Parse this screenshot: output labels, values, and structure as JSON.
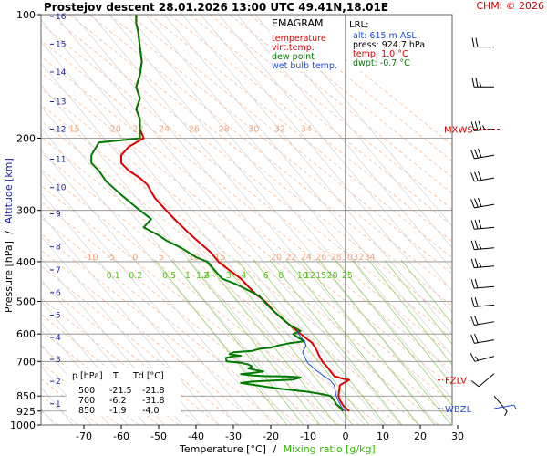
{
  "header": {
    "title": "Prostejov   descent   28.01.2026 13:00 UTC  49.41N,18.01E",
    "copyright": "CHMI © 2026"
  },
  "chart_data": {
    "type": "line",
    "title": "Prostejov   descent   28.01.2026 13:00 UTC  49.41N,18.01E",
    "diagram": "EMAGRAM",
    "xlabel": "Temperature [°C]",
    "xlabel_sep": "/",
    "xlabel2": "Mixing ratio [g/kg]",
    "ylabel": "Pressure [hPa]",
    "ylabel_sep": "/",
    "ylabel2": "Altitude [km]",
    "xlim": [
      -80,
      30
    ],
    "ylim": [
      1000,
      100
    ],
    "yscale": "log",
    "x_ticks": [
      -70,
      -60,
      -50,
      -40,
      -30,
      -20,
      -10,
      0,
      10,
      20,
      30
    ],
    "y_ticks": [
      100,
      200,
      300,
      400,
      500,
      600,
      700,
      850,
      925,
      1000
    ],
    "y_grid": [
      200,
      300,
      400,
      500,
      600,
      700,
      850,
      925
    ],
    "altitude_ticks_km": [
      {
        "km": "1",
        "p": 888
      },
      {
        "km": "2",
        "p": 783
      },
      {
        "km": "3",
        "p": 692
      },
      {
        "km": "4",
        "p": 612
      },
      {
        "km": "5",
        "p": 540
      },
      {
        "km": "6",
        "p": 476
      },
      {
        "km": "7",
        "p": 419
      },
      {
        "km": "8",
        "p": 368
      },
      {
        "km": "9",
        "p": 306
      },
      {
        "km": "10",
        "p": 264
      },
      {
        "km": "11",
        "p": 225
      },
      {
        "km": "12",
        "p": 190
      },
      {
        "km": "13",
        "p": 163
      },
      {
        "km": "14",
        "p": 138
      },
      {
        "km": "15",
        "p": 118
      },
      {
        "km": "16",
        "p": 101
      }
    ],
    "legend": [
      {
        "label": "temperature",
        "color": "#e00000"
      },
      {
        "label": "virt.temp.",
        "color": "#e00000"
      },
      {
        "label": "dew point",
        "color": "#007a00"
      },
      {
        "label": "wet bulb temp.",
        "color": "#1f4fd0"
      }
    ],
    "lrl": {
      "title": "LRL:",
      "alt": "alt: 615 m ASL",
      "press": "press: 924.7 hPa",
      "temp": "temp: 1.0 °C",
      "dwpt": "dwpt: -0.7 °C"
    },
    "levels_table": {
      "header": [
        "p [hPa]",
        "T",
        "Td [°C]"
      ],
      "rows": [
        [
          "500",
          "-21.5",
          "-21.8"
        ],
        [
          "700",
          "-6.2",
          "-31.8"
        ],
        [
          "850",
          "-1.9",
          "-4.0"
        ]
      ]
    },
    "markers": {
      "mxws": {
        "label": "MXWS",
        "p": 190
      },
      "fzlv": {
        "label": "FZLV",
        "p": 777
      },
      "wbzl": {
        "label": "WBZL",
        "p": 912
      }
    },
    "dry_adiabat_labels": {
      "row1": {
        "p": 196,
        "labels": [
          "15",
          "20",
          "22",
          "24",
          "26",
          "28",
          "30",
          "32",
          "34"
        ],
        "t": [
          -74,
          -63,
          -57,
          -50,
          -42,
          -34,
          -26,
          -19,
          -12
        ]
      },
      "row2": {
        "p": 402,
        "labels": [
          "-10",
          "-5",
          "0",
          "5",
          "10",
          "15",
          "20",
          "22",
          "24",
          "26",
          "28",
          "30",
          "32",
          "34"
        ],
        "t": [
          -70,
          -64,
          -57,
          -50,
          -42,
          -35,
          -20,
          -16,
          -12,
          -8,
          -4,
          -1,
          2,
          5
        ]
      }
    },
    "mixing_ratio_labels": {
      "p": 445,
      "labels": [
        "0.1",
        "0.2",
        "0.5",
        "1",
        "1.4",
        "2",
        "3",
        "4",
        "6",
        "8",
        "10",
        "12",
        "15",
        "20",
        "25"
      ],
      "t": [
        -64,
        -58,
        -49,
        -43,
        -40,
        -38,
        -32,
        -28,
        -22,
        -18,
        -13,
        -11,
        -8,
        -5,
        -1
      ]
    },
    "series": [
      {
        "name": "temperature",
        "color": "#e00000",
        "points": [
          [
            -56,
            100
          ],
          [
            -56,
            105
          ],
          [
            -55.5,
            110
          ],
          [
            -55,
            120
          ],
          [
            -54.5,
            130
          ],
          [
            -55,
            140
          ],
          [
            -56,
            150
          ],
          [
            -55,
            160
          ],
          [
            -56,
            170
          ],
          [
            -55,
            180
          ],
          [
            -55,
            190
          ],
          [
            -54,
            200
          ],
          [
            -58,
            210
          ],
          [
            -60,
            220
          ],
          [
            -60,
            230
          ],
          [
            -58,
            240
          ],
          [
            -55,
            250
          ],
          [
            -53,
            260
          ],
          [
            -51,
            280
          ],
          [
            -48,
            300
          ],
          [
            -45,
            320
          ],
          [
            -42,
            340
          ],
          [
            -39,
            360
          ],
          [
            -36,
            380
          ],
          [
            -34,
            400
          ],
          [
            -31,
            420
          ],
          [
            -28,
            440
          ],
          [
            -26,
            460
          ],
          [
            -24,
            480
          ],
          [
            -21.5,
            500
          ],
          [
            -19,
            530
          ],
          [
            -16,
            560
          ],
          [
            -13,
            590
          ],
          [
            -10,
            620
          ],
          [
            -9,
            630
          ],
          [
            -8,
            650
          ],
          [
            -7,
            680
          ],
          [
            -6.2,
            700
          ],
          [
            -5,
            720
          ],
          [
            -4,
            740
          ],
          [
            -3,
            760
          ],
          [
            -1,
            770
          ],
          [
            1,
            777
          ],
          [
            0,
            785
          ],
          [
            -1.5,
            800
          ],
          [
            -1.9,
            850
          ],
          [
            -1.5,
            870
          ],
          [
            -0.5,
            900
          ],
          [
            1,
            924.7
          ]
        ]
      },
      {
        "name": "dew point",
        "color": "#007a00",
        "points": [
          [
            -56,
            100
          ],
          [
            -56,
            105
          ],
          [
            -55.5,
            110
          ],
          [
            -55,
            120
          ],
          [
            -54.5,
            130
          ],
          [
            -55,
            140
          ],
          [
            -56,
            150
          ],
          [
            -55,
            160
          ],
          [
            -56,
            170
          ],
          [
            -55,
            180
          ],
          [
            -55,
            190
          ],
          [
            -55,
            200
          ],
          [
            -66,
            205
          ],
          [
            -68,
            220
          ],
          [
            -68,
            230
          ],
          [
            -66,
            240
          ],
          [
            -64,
            255
          ],
          [
            -60,
            275
          ],
          [
            -56,
            295
          ],
          [
            -52,
            315
          ],
          [
            -54,
            330
          ],
          [
            -50,
            345
          ],
          [
            -48,
            355
          ],
          [
            -44,
            370
          ],
          [
            -40,
            390
          ],
          [
            -37,
            400
          ],
          [
            -35,
            420
          ],
          [
            -33,
            440
          ],
          [
            -29,
            455
          ],
          [
            -26,
            470
          ],
          [
            -23,
            485
          ],
          [
            -21.8,
            500
          ],
          [
            -20,
            520
          ],
          [
            -17,
            550
          ],
          [
            -15,
            570
          ],
          [
            -12,
            590
          ],
          [
            -14,
            600
          ],
          [
            -13,
            610
          ],
          [
            -11,
            625
          ],
          [
            -15,
            632
          ],
          [
            -18,
            640
          ],
          [
            -20,
            648
          ],
          [
            -23,
            652
          ],
          [
            -25,
            660
          ],
          [
            -27,
            662
          ],
          [
            -30,
            665
          ],
          [
            -31,
            672
          ],
          [
            -28,
            678
          ],
          [
            -30,
            680
          ],
          [
            -32,
            686
          ],
          [
            -31.8,
            700
          ],
          [
            -28,
            705
          ],
          [
            -26,
            712
          ],
          [
            -25,
            720
          ],
          [
            -26,
            728
          ],
          [
            -24,
            735
          ],
          [
            -22,
            740
          ],
          [
            -25,
            747
          ],
          [
            -28,
            752
          ],
          [
            -25,
            757
          ],
          [
            -22,
            760
          ],
          [
            -15,
            762
          ],
          [
            -12,
            766
          ],
          [
            -14,
            775
          ],
          [
            -20,
            780
          ],
          [
            -25,
            784
          ],
          [
            -28,
            790
          ],
          [
            -24,
            800
          ],
          [
            -18,
            815
          ],
          [
            -10,
            830
          ],
          [
            -6,
            842
          ],
          [
            -4,
            850
          ],
          [
            -3,
            870
          ],
          [
            -2.5,
            890
          ],
          [
            -1.5,
            905
          ],
          [
            -0.7,
            924.7
          ]
        ]
      },
      {
        "name": "wet bulb temp.",
        "color": "#1f4fd0",
        "points": [
          [
            -13,
            592
          ],
          [
            -12,
            610
          ],
          [
            -11,
            625
          ],
          [
            -10.5,
            640
          ],
          [
            -11,
            652
          ],
          [
            -11.5,
            664
          ],
          [
            -11,
            680
          ],
          [
            -10.5,
            695
          ],
          [
            -10,
            708
          ],
          [
            -9,
            720
          ],
          [
            -8,
            735
          ],
          [
            -7,
            745
          ],
          [
            -6,
            758
          ],
          [
            -5,
            768
          ],
          [
            -4,
            780
          ],
          [
            -3,
            800
          ],
          [
            -2.5,
            850
          ],
          [
            -2,
            870
          ],
          [
            -1.2,
            900
          ],
          [
            -0.2,
            924.7
          ]
        ]
      }
    ],
    "wind_barbs": [
      {
        "p": 120,
        "dir": 270,
        "spd": 20
      },
      {
        "p": 150,
        "dir": 270,
        "spd": 25
      },
      {
        "p": 190,
        "dir": 265,
        "spd": 35
      },
      {
        "p": 220,
        "dir": 260,
        "spd": 30
      },
      {
        "p": 250,
        "dir": 260,
        "spd": 30
      },
      {
        "p": 290,
        "dir": 260,
        "spd": 30
      },
      {
        "p": 330,
        "dir": 265,
        "spd": 30
      },
      {
        "p": 370,
        "dir": 265,
        "spd": 25
      },
      {
        "p": 410,
        "dir": 265,
        "spd": 25
      },
      {
        "p": 460,
        "dir": 265,
        "spd": 20
      },
      {
        "p": 510,
        "dir": 265,
        "spd": 20
      },
      {
        "p": 560,
        "dir": 260,
        "spd": 20
      },
      {
        "p": 620,
        "dir": 260,
        "spd": 20
      },
      {
        "p": 680,
        "dir": 255,
        "spd": 15
      },
      {
        "p": 750,
        "dir": 230,
        "spd": 10
      },
      {
        "p": 850,
        "dir": 140,
        "spd": 5
      },
      {
        "p": 912,
        "dir": 80,
        "spd": 5
      }
    ]
  }
}
